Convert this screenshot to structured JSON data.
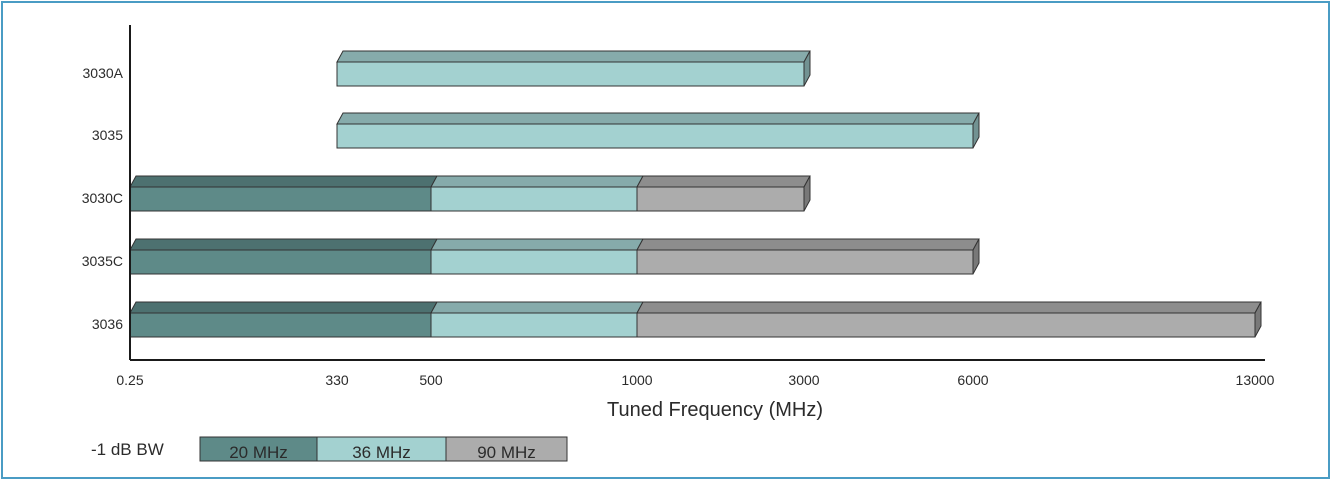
{
  "chart_data": {
    "type": "bar",
    "orientation": "horizontal",
    "stacked": true,
    "xlabel": "Tuned Frequency (MHz)",
    "x_ticks": [
      "0.25",
      "330",
      "500",
      "1000",
      "3000",
      "6000",
      "13000"
    ],
    "categories": [
      "3030A",
      "3035",
      "3030C",
      "3035C",
      "3036"
    ],
    "series": [
      {
        "name": "20 MHz",
        "color": "#5e8a88",
        "ranges": [
          null,
          null,
          [
            "0.25",
            "500"
          ],
          [
            "0.25",
            "500"
          ],
          [
            "0.25",
            "500"
          ]
        ]
      },
      {
        "name": "36 MHz",
        "color": "#a3d1d0",
        "ranges": [
          [
            "330",
            "3000"
          ],
          [
            "330",
            "6000"
          ],
          [
            "500",
            "1000"
          ],
          [
            "500",
            "1000"
          ],
          [
            "500",
            "1000"
          ]
        ]
      },
      {
        "name": "90 MHz",
        "color": "#acacac",
        "ranges": [
          null,
          null,
          [
            "1000",
            "3000"
          ],
          [
            "1000",
            "6000"
          ],
          [
            "1000",
            "13000"
          ]
        ]
      }
    ],
    "legend": {
      "title": "-1 dB BW",
      "position": "bottom-left",
      "entries": [
        "20 MHz",
        "36 MHz",
        "90 MHz"
      ]
    },
    "grid": false
  }
}
